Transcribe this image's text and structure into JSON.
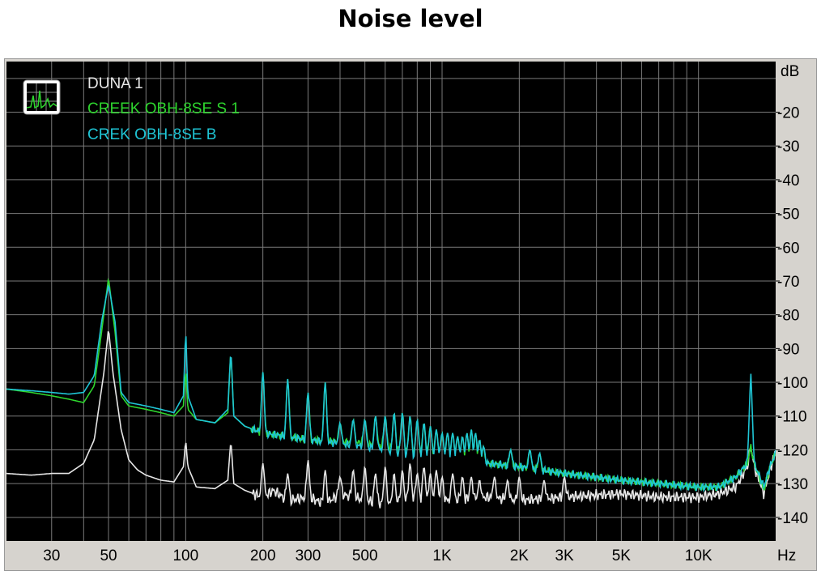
{
  "title": "Noise level",
  "colors": {
    "plot_bg": "#000000",
    "grid": "#7a7a7a",
    "frame": "#d6d3ce",
    "duna": "#e6e6e6",
    "creek_s": "#2ed62e",
    "creek_b": "#1fc6d6"
  },
  "icon": "spectrum-analyzer-icon",
  "chart_data": {
    "type": "line",
    "title": "Noise level",
    "xlabel": "Hz",
    "ylabel": "dB",
    "xscale": "log",
    "xlim": [
      20,
      20000
    ],
    "ylim": [
      -147,
      -5
    ],
    "x_ticks": [
      {
        "v": 30,
        "label": "30"
      },
      {
        "v": 50,
        "label": "50"
      },
      {
        "v": 100,
        "label": "100"
      },
      {
        "v": 200,
        "label": "200"
      },
      {
        "v": 300,
        "label": "300"
      },
      {
        "v": 500,
        "label": "500"
      },
      {
        "v": 1000,
        "label": "1K"
      },
      {
        "v": 2000,
        "label": "2K"
      },
      {
        "v": 3000,
        "label": "3K"
      },
      {
        "v": 5000,
        "label": "5K"
      },
      {
        "v": 10000,
        "label": "10K"
      }
    ],
    "y_ticks": [
      {
        "v": -20,
        "label": "-20"
      },
      {
        "v": -30,
        "label": "-30"
      },
      {
        "v": -40,
        "label": "-40"
      },
      {
        "v": -50,
        "label": "-50"
      },
      {
        "v": -60,
        "label": "-60"
      },
      {
        "v": -70,
        "label": "-70"
      },
      {
        "v": -80,
        "label": "-80"
      },
      {
        "v": -90,
        "label": "-90"
      },
      {
        "v": -100,
        "label": "-100"
      },
      {
        "v": -110,
        "label": "-110"
      },
      {
        "v": -120,
        "label": "-120"
      },
      {
        "v": -130,
        "label": "-130"
      },
      {
        "v": -140,
        "label": "-140"
      }
    ],
    "grid": true,
    "legend_position": "top-left",
    "series": [
      {
        "name": "DUNA 1",
        "color": "#e6e6e6",
        "x": [
          20,
          25,
          30,
          35,
          40,
          44,
          48,
          50,
          52,
          56,
          60,
          65,
          70,
          80,
          90,
          98,
          100,
          102,
          110,
          130,
          146,
          150,
          154,
          170,
          200,
          220,
          250,
          300,
          350,
          400,
          500,
          600,
          800,
          1000,
          1500,
          2000,
          3000,
          5000,
          7000,
          10000,
          12000,
          14000,
          15500,
          16000,
          16500,
          18000,
          19000,
          20000
        ],
        "y": [
          -127,
          -127.5,
          -127,
          -127,
          -124,
          -117,
          -97,
          -84,
          -97,
          -114,
          -123,
          -126,
          -127.5,
          -129,
          -129.5,
          -125,
          -117,
          -125,
          -131,
          -131.5,
          -129,
          -117,
          -130,
          -132,
          -134,
          -132,
          -135,
          -134,
          -136,
          -133,
          -135,
          -136,
          -134,
          -135,
          -134,
          -135,
          -134,
          -133,
          -134,
          -134,
          -133,
          -131,
          -125,
          -119,
          -125,
          -133,
          -126,
          -120
        ]
      },
      {
        "name": "CREEK OBH-8SE S 1",
        "color": "#2ed62e",
        "x": [
          20,
          25,
          30,
          35,
          40,
          44,
          47,
          50,
          53,
          56,
          60,
          70,
          80,
          90,
          98,
          100,
          102,
          110,
          130,
          146,
          150,
          154,
          170,
          200,
          300,
          500,
          700,
          1000,
          1500,
          2000,
          3000,
          5000,
          7000,
          10000,
          12000,
          14000,
          15500,
          16000,
          16500,
          18000,
          19000,
          20000
        ],
        "y": [
          -102,
          -103,
          -104,
          -105,
          -106,
          -101,
          -85,
          -69,
          -85,
          -104,
          -107,
          -108,
          -109,
          -110,
          -107,
          -96,
          -108,
          -111,
          -112,
          -109,
          -90,
          -110,
          -113,
          -115,
          -117,
          -118,
          -120,
          -122,
          -124,
          -125,
          -127,
          -129,
          -130,
          -131,
          -131,
          -128,
          -124,
          -119,
          -124,
          -132,
          -125,
          -121
        ]
      },
      {
        "name": "CREK OBH-8SE B",
        "color": "#1fc6d6",
        "x": [
          20,
          25,
          30,
          35,
          40,
          44,
          47,
          50,
          53,
          56,
          60,
          70,
          80,
          90,
          98,
          100,
          102,
          110,
          130,
          146,
          150,
          154,
          170,
          200,
          300,
          500,
          700,
          1000,
          1500,
          2000,
          3000,
          5000,
          7000,
          10000,
          12000,
          14000,
          15500,
          16000,
          16500,
          18000,
          19000,
          20000
        ],
        "y": [
          -102,
          -102.5,
          -103,
          -103.5,
          -103,
          -98,
          -82,
          -71,
          -82,
          -103,
          -106,
          -107,
          -108,
          -109,
          -104,
          -84,
          -104,
          -111,
          -112,
          -108,
          -90,
          -110,
          -113,
          -115,
          -117,
          -119,
          -121,
          -122,
          -124,
          -125,
          -127,
          -129,
          -130,
          -131,
          -131,
          -128,
          -124,
          -97,
          -124,
          -131,
          -125,
          -121
        ]
      }
    ],
    "spike_groups": {
      "creek": [
        {
          "f": 200,
          "y": -97
        },
        {
          "f": 250,
          "y": -99
        },
        {
          "f": 300,
          "y": -103
        },
        {
          "f": 350,
          "y": -100
        },
        {
          "f": 400,
          "y": -112
        },
        {
          "f": 450,
          "y": -111
        },
        {
          "f": 500,
          "y": -111
        },
        {
          "f": 550,
          "y": -110
        },
        {
          "f": 600,
          "y": -110
        },
        {
          "f": 650,
          "y": -109
        },
        {
          "f": 700,
          "y": -109
        },
        {
          "f": 750,
          "y": -110
        },
        {
          "f": 800,
          "y": -111
        },
        {
          "f": 850,
          "y": -112
        },
        {
          "f": 900,
          "y": -113
        },
        {
          "f": 950,
          "y": -114
        },
        {
          "f": 1000,
          "y": -115
        },
        {
          "f": 1050,
          "y": -115
        },
        {
          "f": 1100,
          "y": -115
        },
        {
          "f": 1150,
          "y": -116
        },
        {
          "f": 1200,
          "y": -116
        },
        {
          "f": 1250,
          "y": -115
        },
        {
          "f": 1300,
          "y": -114
        },
        {
          "f": 1350,
          "y": -115
        },
        {
          "f": 1400,
          "y": -117
        },
        {
          "f": 1450,
          "y": -119
        },
        {
          "f": 1850,
          "y": -120
        },
        {
          "f": 2200,
          "y": -120
        },
        {
          "f": 2400,
          "y": -121
        }
      ],
      "duna": [
        {
          "f": 200,
          "y": -124
        },
        {
          "f": 250,
          "y": -127
        },
        {
          "f": 300,
          "y": -123
        },
        {
          "f": 350,
          "y": -126
        },
        {
          "f": 400,
          "y": -128
        },
        {
          "f": 450,
          "y": -126
        },
        {
          "f": 500,
          "y": -125
        },
        {
          "f": 550,
          "y": -127
        },
        {
          "f": 600,
          "y": -125
        },
        {
          "f": 650,
          "y": -127
        },
        {
          "f": 700,
          "y": -126
        },
        {
          "f": 750,
          "y": -124
        },
        {
          "f": 800,
          "y": -127
        },
        {
          "f": 850,
          "y": -125
        },
        {
          "f": 900,
          "y": -127
        },
        {
          "f": 950,
          "y": -126
        },
        {
          "f": 1000,
          "y": -128
        },
        {
          "f": 1100,
          "y": -127
        },
        {
          "f": 1200,
          "y": -128
        },
        {
          "f": 1300,
          "y": -128
        },
        {
          "f": 1400,
          "y": -129
        },
        {
          "f": 1600,
          "y": -128
        },
        {
          "f": 1800,
          "y": -129
        },
        {
          "f": 2000,
          "y": -128
        },
        {
          "f": 2500,
          "y": -129
        },
        {
          "f": 3000,
          "y": -128
        }
      ]
    }
  }
}
